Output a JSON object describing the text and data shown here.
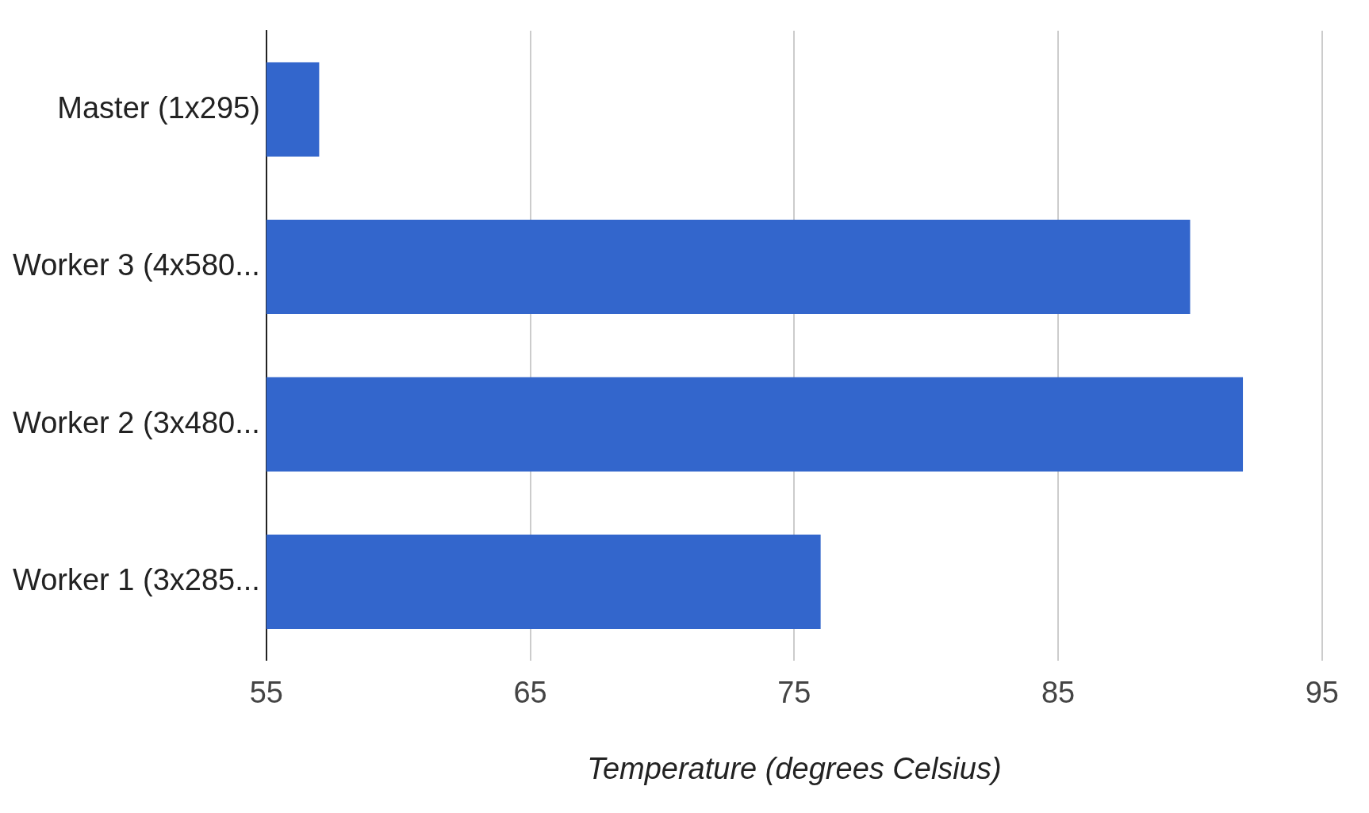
{
  "chart_data": {
    "type": "bar",
    "orientation": "horizontal",
    "categories": [
      "Master (1x295)",
      "Worker 3 (4x580...",
      "Worker 2 (3x480...",
      "Worker 1 (3x285..."
    ],
    "values": [
      57,
      90,
      92,
      76
    ],
    "color": "#3366cc",
    "xlim": [
      55,
      95
    ],
    "xticks": [
      55,
      65,
      75,
      85,
      95
    ],
    "xlabel": "Temperature (degrees Celsius)",
    "grid": "x",
    "legend": false
  }
}
